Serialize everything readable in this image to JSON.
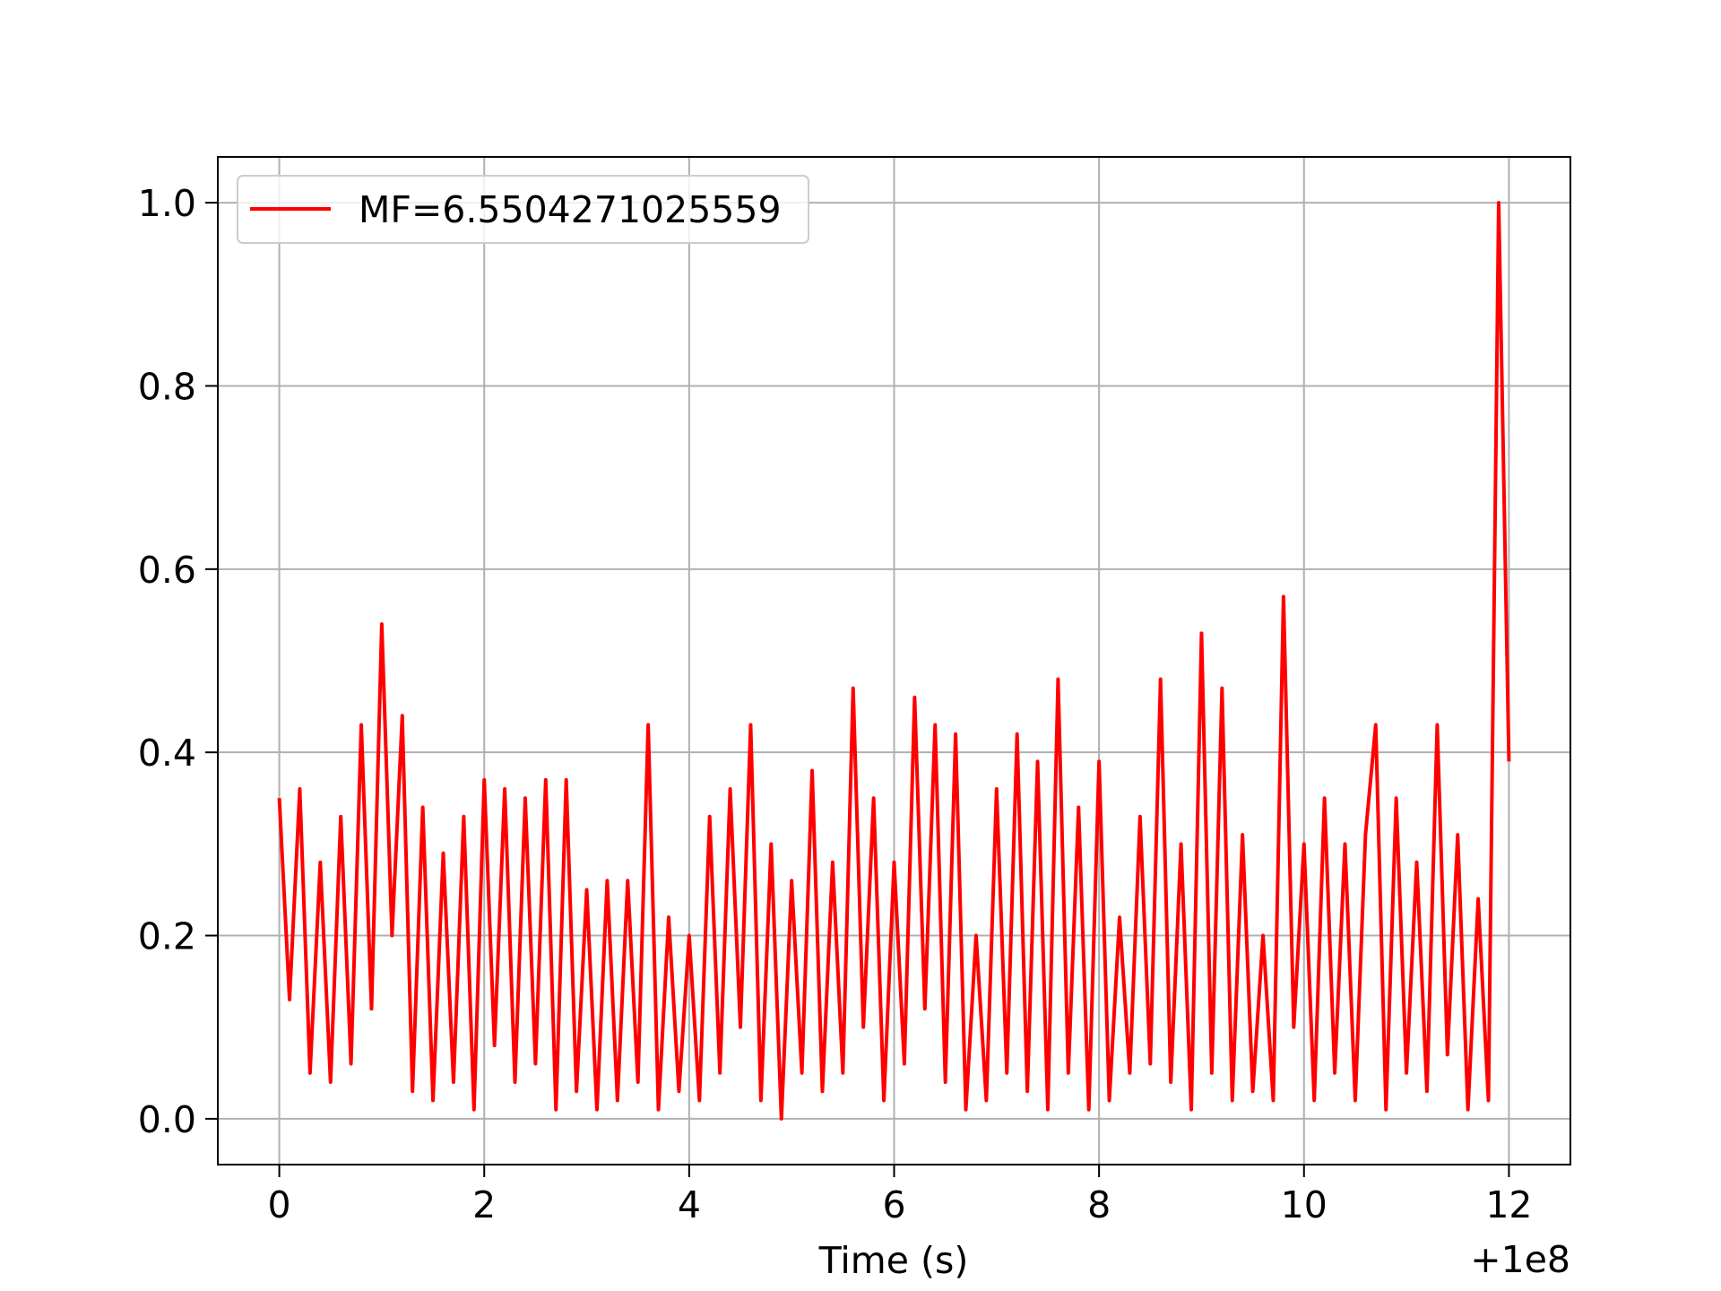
{
  "chart_data": {
    "type": "line",
    "xlabel": "Time (s)",
    "x_offset_label": "+1e8",
    "x": [
      0.0,
      0.1,
      0.2,
      0.3,
      0.4,
      0.5,
      0.6,
      0.7,
      0.8,
      0.9,
      1.0,
      1.1,
      1.2,
      1.3,
      1.4,
      1.5,
      1.6,
      1.7,
      1.8,
      1.9,
      2.0,
      2.1,
      2.2,
      2.3,
      2.4,
      2.5,
      2.6,
      2.7,
      2.8,
      2.9,
      3.0,
      3.1,
      3.2,
      3.3,
      3.4,
      3.5,
      3.6,
      3.7,
      3.8,
      3.9,
      4.0,
      4.1,
      4.2,
      4.3,
      4.4,
      4.5,
      4.6,
      4.7,
      4.8,
      4.9,
      5.0,
      5.1,
      5.2,
      5.3,
      5.4,
      5.5,
      5.6,
      5.7,
      5.8,
      5.9,
      6.0,
      6.1,
      6.2,
      6.3,
      6.4,
      6.5,
      6.6,
      6.7,
      6.8,
      6.9,
      7.0,
      7.1,
      7.2,
      7.3,
      7.4,
      7.5,
      7.6,
      7.7,
      7.8,
      7.9,
      8.0,
      8.1,
      8.2,
      8.3,
      8.4,
      8.5,
      8.6,
      8.7,
      8.8,
      8.9,
      9.0,
      9.1,
      9.2,
      9.3,
      9.4,
      9.5,
      9.6,
      9.7,
      9.8,
      9.9,
      10.0,
      10.1,
      10.2,
      10.3,
      10.4,
      10.5,
      10.6,
      10.7,
      10.8,
      10.9,
      11.0,
      11.1,
      11.2,
      11.3,
      11.4,
      11.5,
      11.6,
      11.7,
      11.8,
      11.9,
      12.0
    ],
    "series": [
      {
        "name": "MF=6.5504271025559",
        "color": "#ff0000",
        "values": [
          0.35,
          0.13,
          0.36,
          0.05,
          0.28,
          0.04,
          0.33,
          0.06,
          0.43,
          0.12,
          0.54,
          0.2,
          0.44,
          0.03,
          0.34,
          0.02,
          0.29,
          0.04,
          0.33,
          0.01,
          0.37,
          0.08,
          0.36,
          0.04,
          0.35,
          0.06,
          0.37,
          0.01,
          0.37,
          0.03,
          0.25,
          0.01,
          0.26,
          0.02,
          0.26,
          0.04,
          0.43,
          0.01,
          0.22,
          0.03,
          0.2,
          0.02,
          0.33,
          0.05,
          0.36,
          0.1,
          0.43,
          0.02,
          0.3,
          0.0,
          0.26,
          0.05,
          0.38,
          0.03,
          0.28,
          0.05,
          0.47,
          0.1,
          0.35,
          0.02,
          0.28,
          0.06,
          0.46,
          0.12,
          0.43,
          0.04,
          0.42,
          0.01,
          0.2,
          0.02,
          0.36,
          0.05,
          0.42,
          0.03,
          0.39,
          0.01,
          0.48,
          0.05,
          0.34,
          0.01,
          0.39,
          0.02,
          0.22,
          0.05,
          0.33,
          0.06,
          0.48,
          0.04,
          0.3,
          0.01,
          0.53,
          0.05,
          0.47,
          0.02,
          0.31,
          0.03,
          0.2,
          0.02,
          0.57,
          0.1,
          0.3,
          0.02,
          0.35,
          0.05,
          0.3,
          0.02,
          0.31,
          0.43,
          0.01,
          0.35,
          0.05,
          0.28,
          0.03,
          0.43,
          0.07,
          0.31,
          0.01,
          0.24,
          0.02,
          1.0,
          0.39
        ]
      }
    ],
    "xlim": [
      -0.6,
      12.6
    ],
    "xticks": [
      0,
      2,
      4,
      6,
      8,
      10,
      12
    ],
    "ylim": [
      -0.05,
      1.05
    ],
    "yticks": [
      {
        "value": 0,
        "label": "0.0"
      },
      {
        "value": 0.2,
        "label": "0.2"
      },
      {
        "value": 0.4,
        "label": "0.4"
      },
      {
        "value": 0.6,
        "label": "0.6"
      },
      {
        "value": 0.8,
        "label": "0.8"
      },
      {
        "value": 1,
        "label": "1.0"
      }
    ],
    "grid": true,
    "legend": "upper left"
  }
}
